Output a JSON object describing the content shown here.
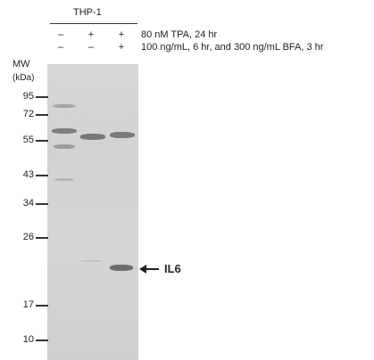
{
  "header": {
    "cell_line": "THP-1"
  },
  "conditions": [
    {
      "label": "80 nM TPA, 24 hr",
      "lanes": [
        "–",
        "+",
        "+"
      ]
    },
    {
      "label": "100 ng/mL, 6 hr, and 300 ng/mL BFA, 3 hr",
      "lanes": [
        "–",
        "–",
        "+"
      ]
    }
  ],
  "mw": {
    "title": "MW",
    "unit": "(kDa)",
    "markers": [
      "95",
      "72",
      "55",
      "43",
      "34",
      "26",
      "17",
      "10"
    ]
  },
  "annotation": {
    "label": "IL6",
    "icon": "arrow-left-icon"
  }
}
